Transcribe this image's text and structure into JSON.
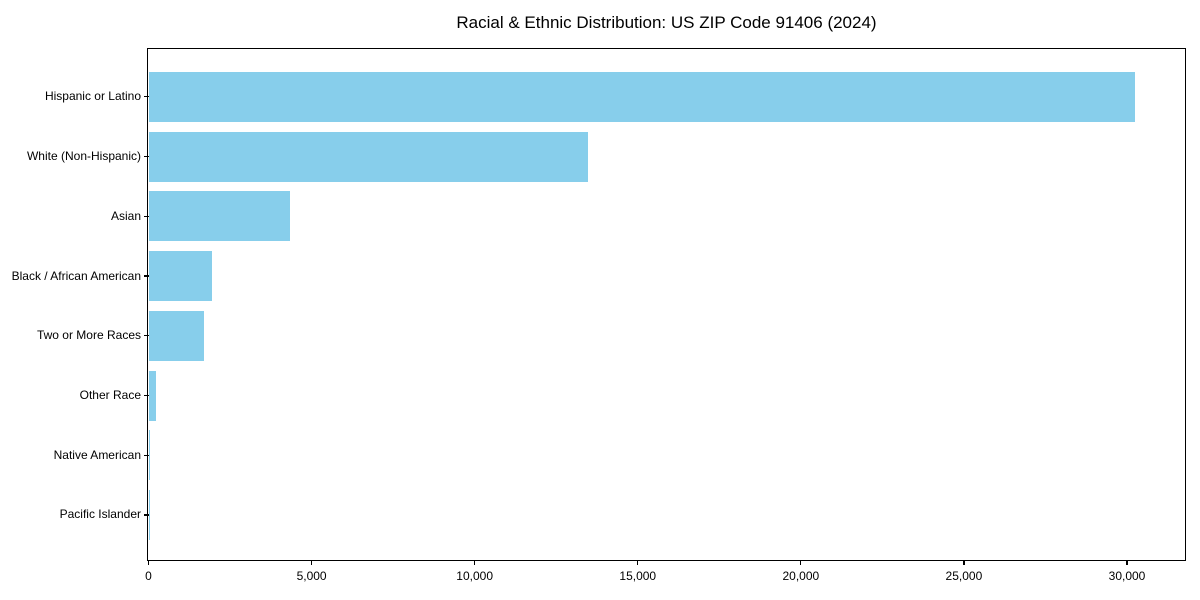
{
  "chart_data": {
    "type": "bar",
    "orientation": "horizontal",
    "title": "Racial & Ethnic Distribution: US ZIP Code 91406 (2024)",
    "categories": [
      "Hispanic or Latino",
      "White (Non-Hispanic)",
      "Asian",
      "Black / African American",
      "Two or More Races",
      "Other Race",
      "Native American",
      "Pacific Islander"
    ],
    "values": [
      30250,
      13480,
      4340,
      1950,
      1700,
      240,
      50,
      20
    ],
    "xlabel": "",
    "ylabel": "",
    "xlim": [
      0,
      31780
    ],
    "xticks": [
      0,
      5000,
      10000,
      15000,
      20000,
      25000,
      30000
    ],
    "xtick_labels": [
      "0",
      "5,000",
      "10,000",
      "15,000",
      "20,000",
      "25,000",
      "30,000"
    ],
    "bar_color": "#87CEEB",
    "axis_color": "#000000",
    "background_color": "#ffffff",
    "grid": false,
    "legend": null
  }
}
